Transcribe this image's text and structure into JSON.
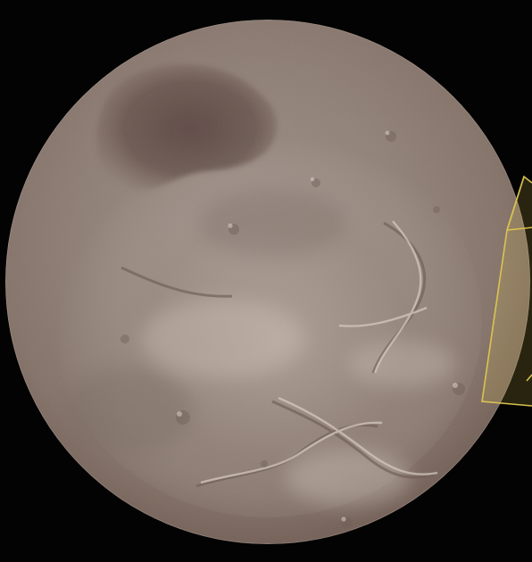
{
  "image": {
    "subject": "moon-image",
    "palette": {
      "space": "#030303",
      "surface": "#8f8078",
      "surface_light": "#b9aca3",
      "surface_dark": "#6e5f58",
      "polar_region": "#5d4843",
      "highlight_overlay": "#e0c850"
    }
  }
}
